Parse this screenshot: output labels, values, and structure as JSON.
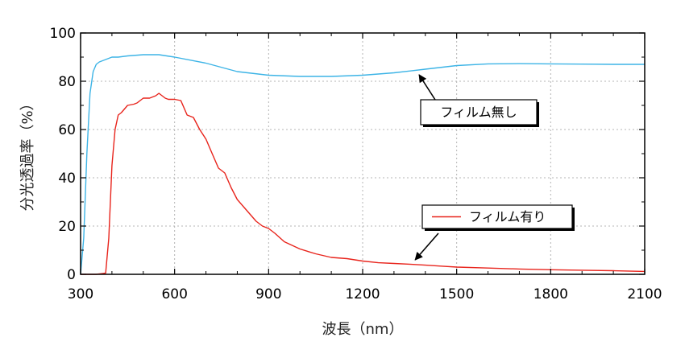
{
  "chart_data": {
    "type": "line",
    "xlabel": "波長（nm）",
    "ylabel": "分光透過率（%）",
    "xlim": [
      300,
      2100
    ],
    "ylim": [
      0,
      100
    ],
    "xticks": [
      300,
      600,
      900,
      1200,
      1500,
      1800,
      2100
    ],
    "yticks": [
      0,
      20,
      40,
      60,
      80,
      100
    ],
    "grid": true,
    "legend": {
      "position": "right-middle",
      "entries": [
        "フィルム有り"
      ]
    },
    "series": [
      {
        "name": "フィルム無し",
        "color": "#3db4e6",
        "x": [
          300,
          310,
          320,
          330,
          340,
          350,
          360,
          370,
          380,
          390,
          400,
          420,
          450,
          500,
          550,
          600,
          700,
          800,
          900,
          1000,
          1100,
          1200,
          1300,
          1400,
          1500,
          1600,
          1700,
          1800,
          1900,
          2000,
          2100
        ],
        "y": [
          0,
          15,
          50,
          75,
          84,
          87,
          88,
          88.5,
          89,
          89.5,
          90,
          90,
          90.5,
          91,
          91,
          90,
          87.5,
          84,
          82.5,
          82,
          82,
          82.5,
          83.5,
          85,
          86.5,
          87.2,
          87.3,
          87.2,
          87.1,
          87,
          87
        ]
      },
      {
        "name": "フィルム有り",
        "color": "#e8241c",
        "x": [
          300,
          350,
          380,
          390,
          400,
          410,
          420,
          430,
          450,
          470,
          480,
          490,
          500,
          520,
          540,
          550,
          560,
          570,
          580,
          600,
          620,
          640,
          660,
          680,
          700,
          720,
          740,
          760,
          780,
          800,
          820,
          840,
          860,
          880,
          900,
          920,
          950,
          1000,
          1050,
          1100,
          1150,
          1200,
          1250,
          1300,
          1350,
          1400,
          1450,
          1500,
          1600,
          1700,
          1800,
          1900,
          2000,
          2100
        ],
        "y": [
          0,
          0,
          0.5,
          15,
          45,
          60,
          66,
          67,
          70,
          70.5,
          71,
          72,
          73,
          73,
          74,
          75,
          74,
          73,
          72.5,
          72.5,
          72,
          66,
          65,
          60,
          56,
          50,
          44,
          42,
          36,
          31,
          28,
          25,
          22,
          20,
          19,
          17,
          13.5,
          10.5,
          8.5,
          7,
          6.5,
          5.5,
          4.8,
          4.5,
          4.2,
          3.8,
          3.4,
          3.0,
          2.6,
          2.2,
          1.9,
          1.7,
          1.5,
          1.2
        ]
      }
    ],
    "annotations": [
      {
        "text": "フィルム無し",
        "points_to": {
          "x": 1370,
          "y": 84
        }
      },
      {
        "text": "フィルム有り",
        "points_to": {
          "x": 1360,
          "y": 4
        }
      }
    ]
  }
}
